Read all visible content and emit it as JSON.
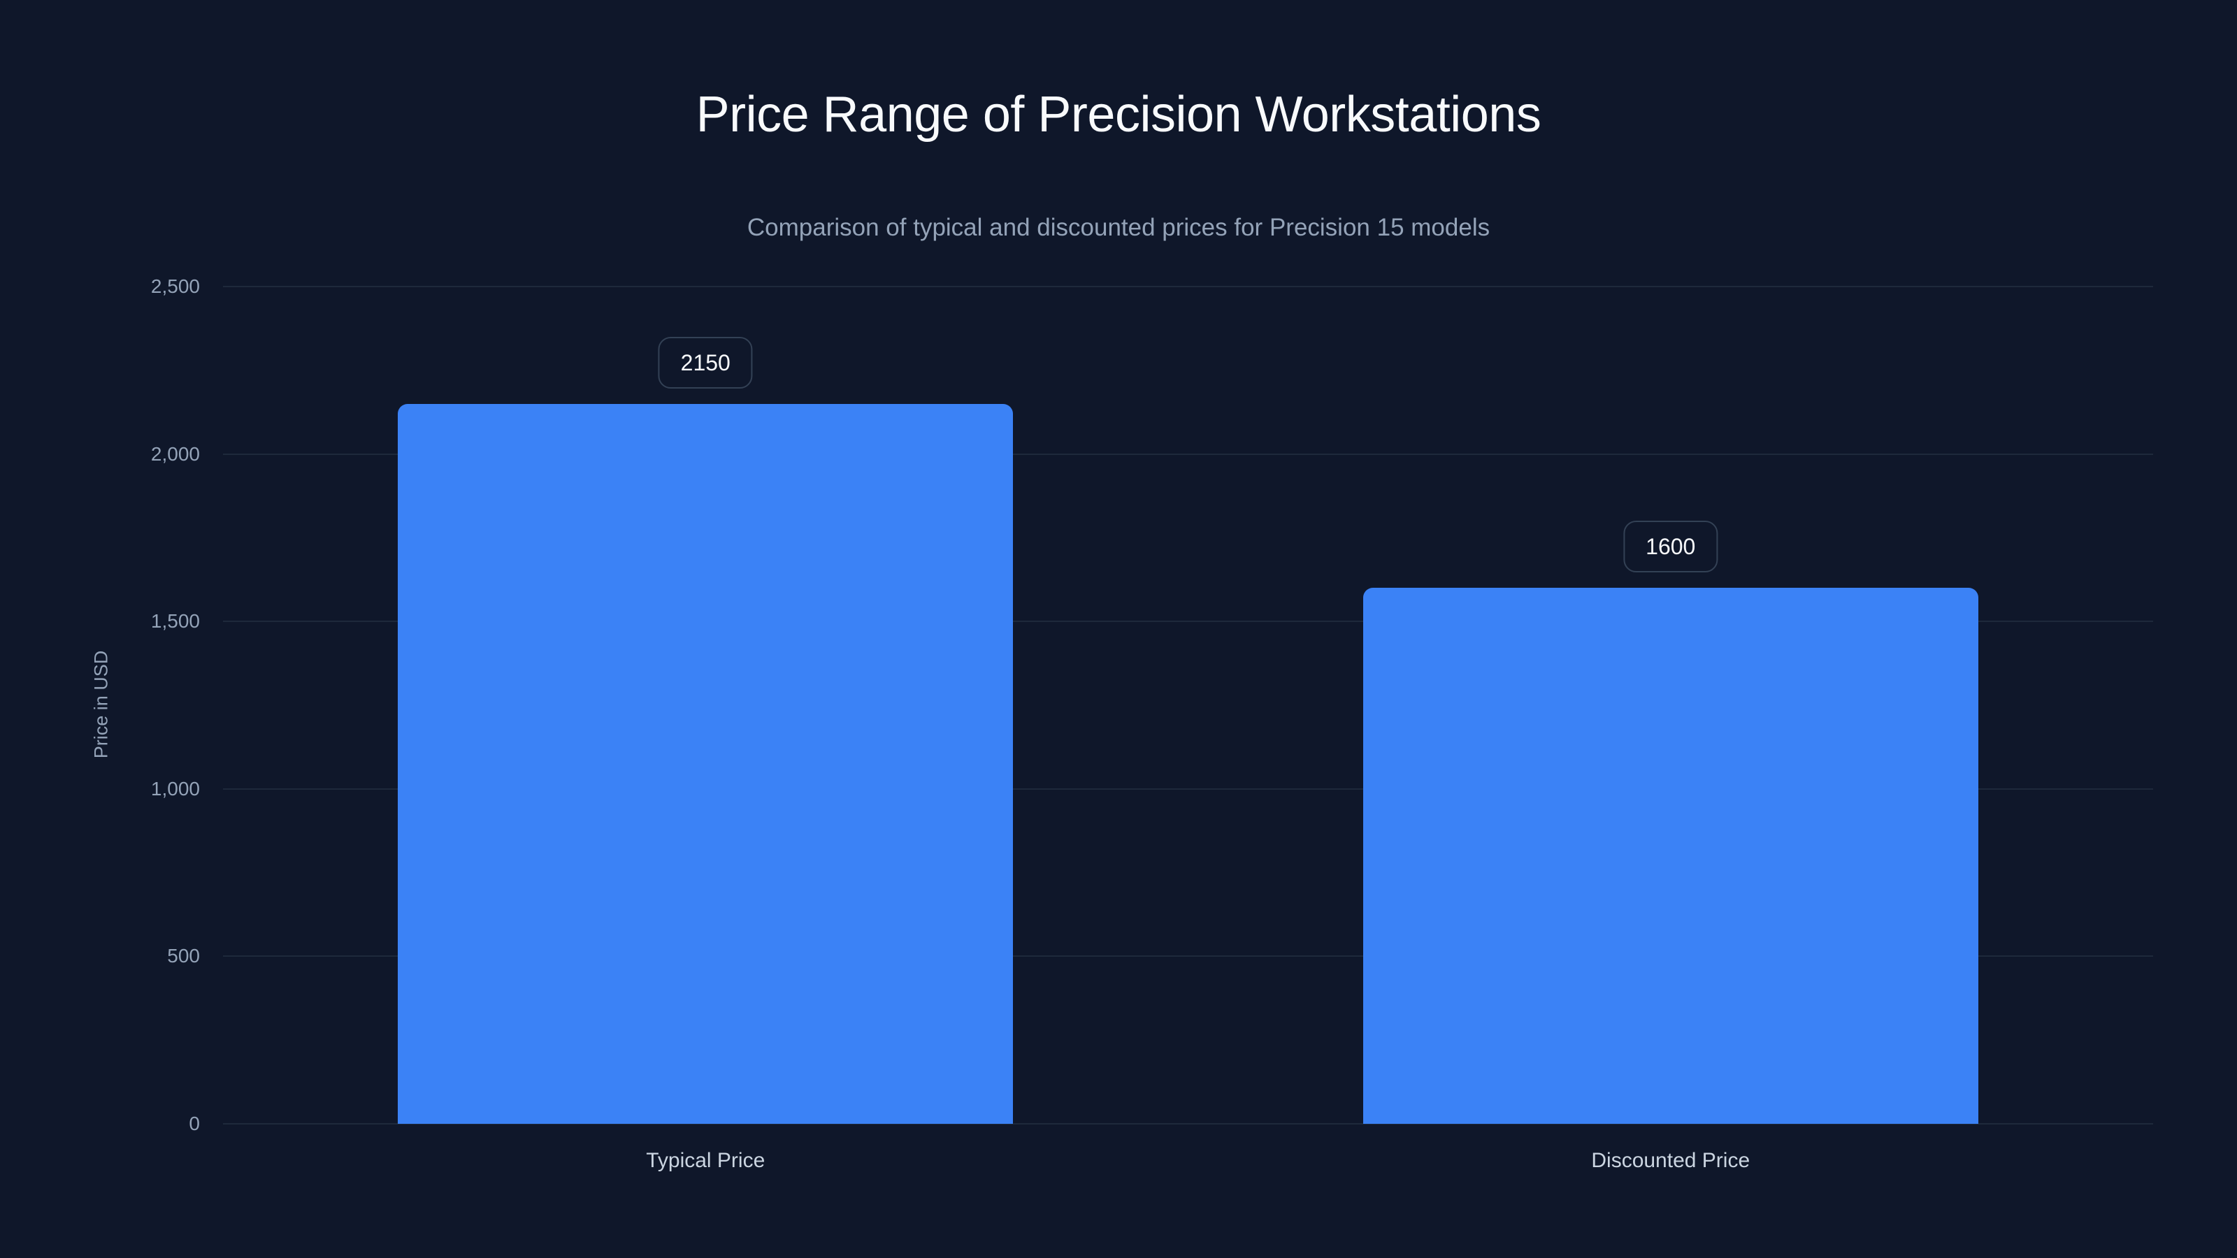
{
  "chart_data": {
    "type": "bar",
    "title": "Price Range of Precision Workstations",
    "subtitle": "Comparison of typical and discounted prices for Precision 15 models",
    "xlabel": "",
    "ylabel": "Price in USD",
    "categories": [
      "Typical Price",
      "Discounted Price"
    ],
    "values": [
      2150,
      1600
    ],
    "data_labels": [
      "2150",
      "1600"
    ],
    "ylim": [
      0,
      2500
    ],
    "yticks": [
      0,
      500,
      1000,
      1500,
      2000,
      2500
    ],
    "ytick_labels": [
      "0",
      "500",
      "1,000",
      "1,500",
      "2,000",
      "2,500"
    ],
    "grid": true,
    "legend": null,
    "colors": {
      "background": "#0f172a",
      "bar": "#3b82f6",
      "gridline": "#1e293b",
      "title": "#f8fafc",
      "subtitle": "#94a3b8",
      "axis_text": "#94a3b8",
      "category_text": "#cbd5e1",
      "label_border": "#334155"
    }
  }
}
